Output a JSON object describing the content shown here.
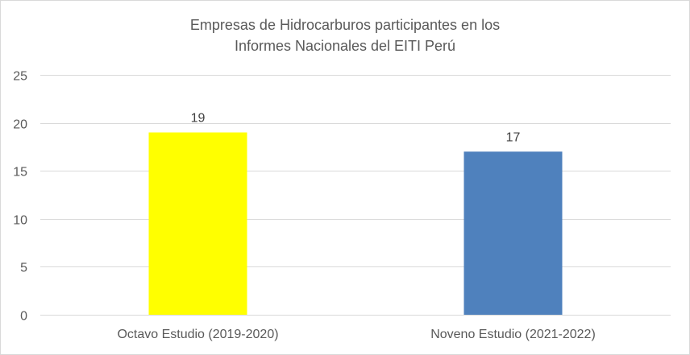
{
  "chart_data": {
    "type": "bar",
    "title_lines": [
      "Empresas de Hidrocarburos participantes en los",
      "Informes Nacionales del EITI Perú"
    ],
    "categories": [
      "Octavo Estudio (2019-2020)",
      "Noveno Estudio (2021-2022)"
    ],
    "values": [
      19,
      17
    ],
    "data_labels": [
      "19",
      "17"
    ],
    "bar_colors": [
      "#ffff00",
      "#4f81bd"
    ],
    "xlabel": "",
    "ylabel": "",
    "ylim": [
      0,
      25
    ],
    "yticks": [
      0,
      5,
      10,
      15,
      20,
      25
    ],
    "grid": true,
    "legend": "none"
  },
  "colors": {
    "gridline": "#d9d9d9",
    "text": "#595959"
  }
}
